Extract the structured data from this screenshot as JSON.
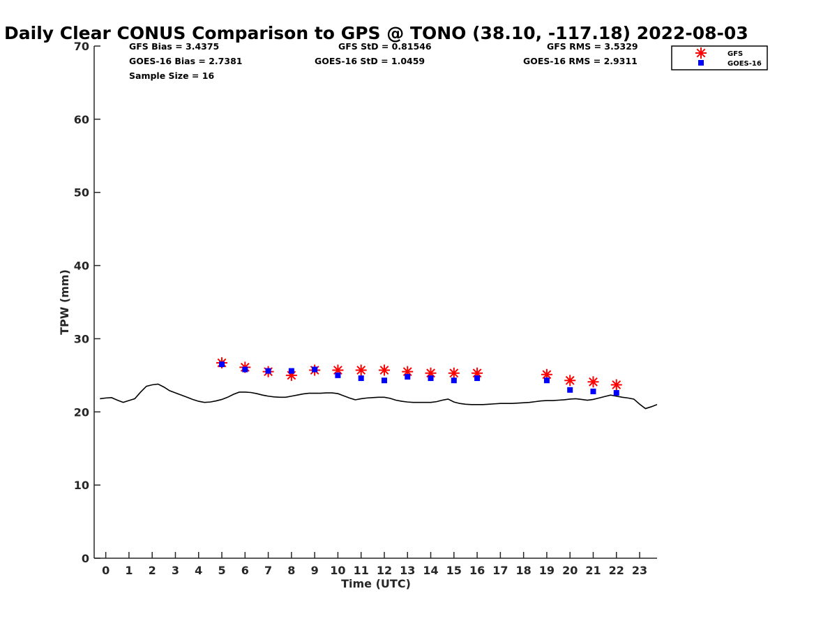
{
  "chart_data": {
    "type": "scatter",
    "title": "Daily Clear CONUS Comparison to GPS @ TONO (38.10, -117.18) 2022-08-03",
    "xlabel": "Time (UTC)",
    "ylabel": "TPW (mm)",
    "xlim": [
      -0.5,
      23.75
    ],
    "ylim": [
      0,
      70
    ],
    "x_ticks": [
      "0",
      "1",
      "2",
      "3",
      "4",
      "5",
      "6",
      "7",
      "8",
      "9",
      "10",
      "11",
      "12",
      "13",
      "14",
      "15",
      "16",
      "17",
      "18",
      "19",
      "20",
      "21",
      "22",
      "23"
    ],
    "y_ticks": [
      "0",
      "10",
      "20",
      "30",
      "40",
      "50",
      "60",
      "70"
    ],
    "grid": false,
    "legend_position": "top-right",
    "stats": {
      "gfs_bias": "GFS Bias = 3.4375",
      "goes_bias": "GOES-16 Bias = 2.7381",
      "sample_size": "Sample Size = 16",
      "gfs_std": "GFS StD = 0.81546",
      "goes_std": "GOES-16 StD = 1.0459",
      "gfs_rms": "GFS RMS = 3.5329",
      "goes_rms": "GOES-16 RMS = 2.9311"
    },
    "series": [
      {
        "kind": "line",
        "color": "#000000",
        "x": [
          -0.25,
          0,
          0.25,
          0.5,
          0.75,
          1,
          1.25,
          1.5,
          1.75,
          2,
          2.25,
          2.5,
          2.75,
          3,
          3.25,
          3.5,
          3.75,
          4,
          4.25,
          4.5,
          4.75,
          5,
          5.25,
          5.5,
          5.75,
          6,
          6.25,
          6.5,
          6.75,
          7,
          7.25,
          7.5,
          7.75,
          8,
          8.25,
          8.5,
          8.75,
          9,
          9.25,
          9.5,
          9.75,
          10,
          10.25,
          10.5,
          10.75,
          11,
          11.25,
          11.5,
          11.75,
          12,
          12.25,
          12.5,
          12.75,
          13,
          13.25,
          13.5,
          13.75,
          14,
          14.25,
          14.5,
          14.75,
          15,
          15.25,
          15.5,
          15.75,
          16,
          16.25,
          16.5,
          16.75,
          17,
          17.25,
          17.5,
          17.75,
          18,
          18.25,
          18.5,
          18.75,
          19,
          19.25,
          19.5,
          19.75,
          20,
          20.25,
          20.5,
          20.75,
          21,
          21.25,
          21.5,
          21.75,
          22,
          22.25,
          22.5,
          22.75,
          23,
          23.25,
          23.5,
          23.75
        ],
        "y": [
          21.8,
          21.9,
          21.95,
          21.6,
          21.3,
          21.55,
          21.8,
          22.7,
          23.5,
          23.7,
          23.8,
          23.4,
          22.9,
          22.6,
          22.3,
          22.0,
          21.7,
          21.45,
          21.3,
          21.35,
          21.5,
          21.7,
          22.0,
          22.4,
          22.7,
          22.7,
          22.65,
          22.5,
          22.3,
          22.15,
          22.05,
          22.0,
          22.0,
          22.15,
          22.3,
          22.45,
          22.55,
          22.55,
          22.55,
          22.6,
          22.6,
          22.5,
          22.2,
          21.9,
          21.65,
          21.8,
          21.9,
          21.95,
          22.0,
          22.0,
          21.85,
          21.6,
          21.45,
          21.35,
          21.3,
          21.3,
          21.3,
          21.3,
          21.4,
          21.6,
          21.75,
          21.35,
          21.15,
          21.05,
          21.0,
          21.0,
          21.0,
          21.05,
          21.1,
          21.15,
          21.15,
          21.15,
          21.2,
          21.25,
          21.3,
          21.4,
          21.5,
          21.55,
          21.55,
          21.6,
          21.65,
          21.75,
          21.8,
          21.7,
          21.6,
          21.7,
          21.9,
          22.1,
          22.3,
          22.15,
          22.0,
          21.9,
          21.75,
          21.05,
          20.45,
          20.7,
          21.0
        ]
      },
      {
        "name": "GFS",
        "kind": "asterisk",
        "color": "#ff0000",
        "x": [
          5,
          6,
          7,
          8,
          9,
          10,
          11,
          12,
          13,
          14,
          15,
          16,
          19,
          20,
          21,
          22
        ],
        "y": [
          26.7,
          26.1,
          25.5,
          25.0,
          25.7,
          25.7,
          25.7,
          25.7,
          25.5,
          25.3,
          25.3,
          25.3,
          25.1,
          24.3,
          24.1,
          23.7
        ]
      },
      {
        "name": "GOES-16",
        "kind": "square",
        "color": "#0000ff",
        "x": [
          5,
          6,
          7,
          8,
          9,
          10,
          11,
          12,
          13,
          14,
          15,
          16,
          19,
          20,
          21,
          22
        ],
        "y": [
          26.5,
          25.8,
          25.6,
          25.6,
          25.8,
          25.0,
          24.6,
          24.3,
          24.8,
          24.6,
          24.3,
          24.6,
          24.3,
          23.0,
          22.8,
          22.6
        ]
      }
    ]
  }
}
